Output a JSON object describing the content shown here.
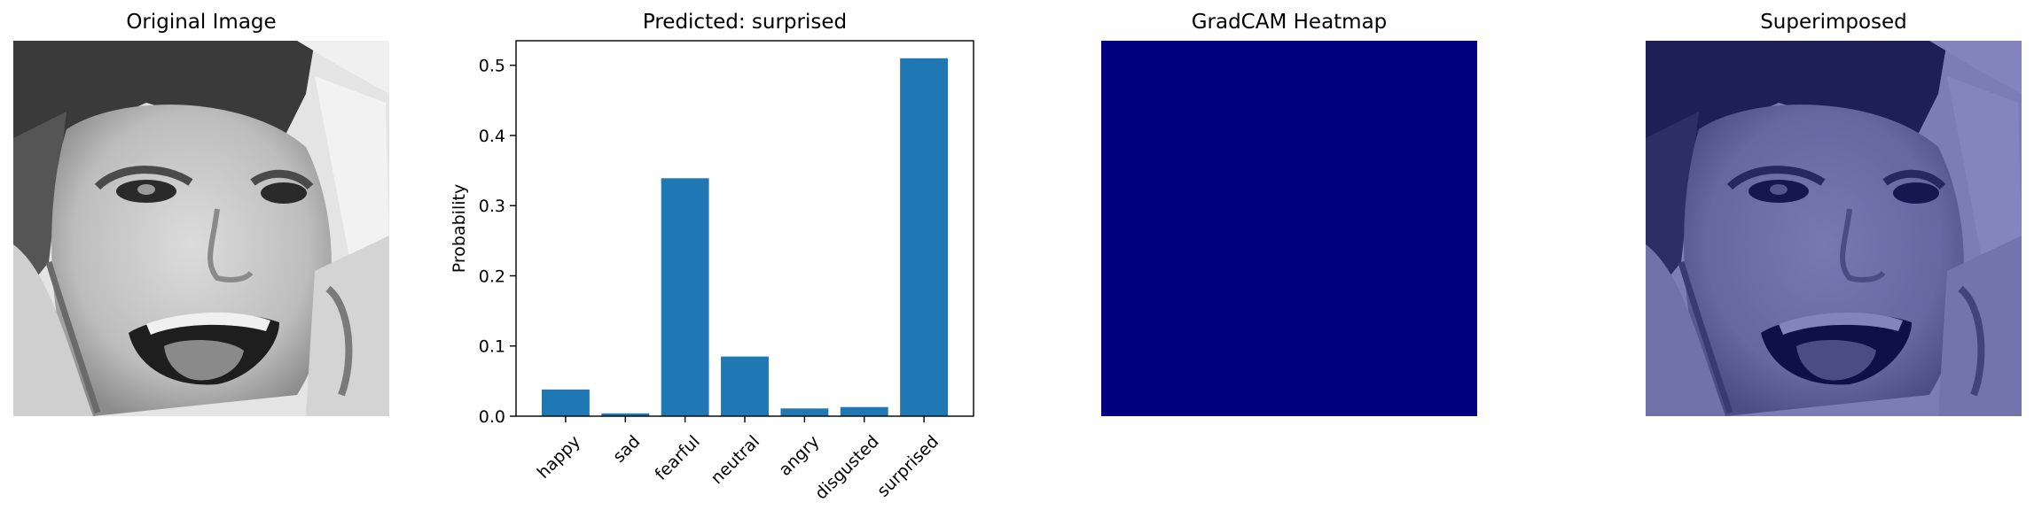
{
  "panels": {
    "original": {
      "title": "Original Image",
      "image": "grayscale-face"
    },
    "heatmap": {
      "title": "GradCAM Heatmap",
      "fill_color": "#00007f"
    },
    "superimposed": {
      "title": "Superimposed",
      "image": "face-with-blue-overlay",
      "overlay_color": "#00007f"
    }
  },
  "chart_data": {
    "type": "bar",
    "title": "Predicted: surprised",
    "xlabel": "",
    "ylabel": "Probability",
    "categories": [
      "happy",
      "sad",
      "fearful",
      "neutral",
      "angry",
      "disgusted",
      "surprised"
    ],
    "values": [
      0.038,
      0.004,
      0.339,
      0.085,
      0.011,
      0.013,
      0.51
    ],
    "ylim": [
      0,
      0.535
    ],
    "yticks": [
      "0.0",
      "0.1",
      "0.2",
      "0.3",
      "0.4",
      "0.5"
    ],
    "bar_color": "#1f77b4",
    "grid": false
  }
}
